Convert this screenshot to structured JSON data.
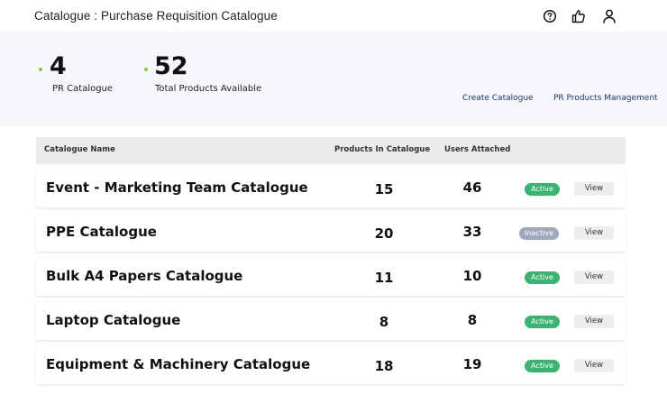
{
  "header": {
    "title": "Catalogue : Purchase Requisition Catalogue",
    "icons": [
      "help-icon",
      "thumbs-up-icon",
      "user-icon"
    ]
  },
  "summary": {
    "stats": [
      {
        "value": "4",
        "label": "PR Catalogue"
      },
      {
        "value": "52",
        "label": "Total Products Available"
      }
    ],
    "links": {
      "create": "Create Catalogue",
      "management": "PR Products Management"
    },
    "accent_color": "#8cc63f"
  },
  "table": {
    "columns": {
      "name": "Catalogue Name",
      "products": "Products In Catalogue",
      "users": "Users Attached"
    },
    "rows": [
      {
        "name": "Event - Marketing Team Catalogue",
        "products": "15",
        "users": "46",
        "status": "Active",
        "action": "View"
      },
      {
        "name": "PPE Catalogue",
        "products": "20",
        "users": "33",
        "status": "Inactive",
        "action": "View"
      },
      {
        "name": "Bulk A4 Papers Catalogue",
        "products": "11",
        "users": "10",
        "status": "Active",
        "action": "View"
      },
      {
        "name": "Laptop Catalogue",
        "products": "8",
        "users": "8",
        "status": "Active",
        "action": "View"
      },
      {
        "name": "Equipment & Machinery Catalogue",
        "products": "18",
        "users": "19",
        "status": "Active",
        "action": "View"
      }
    ]
  },
  "colors": {
    "active": "#3cb371",
    "inactive": "#a0a9bc",
    "link": "#1d3a6b"
  }
}
